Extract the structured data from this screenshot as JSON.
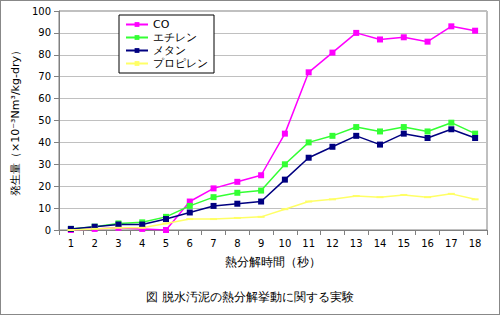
{
  "chart_data": {
    "type": "line",
    "title": "図 脱水汚泥の熱分解挙動に関する実験",
    "x_label": "熱分解時間（秒）",
    "y_label": "発生量（×10⁻³Nm³/kg-dry）",
    "categories": [
      "1",
      "2",
      "3",
      "4",
      "5",
      "6",
      "7",
      "8",
      "9",
      "10",
      "11",
      "12",
      "13",
      "14",
      "15",
      "16",
      "17",
      "18"
    ],
    "series": [
      {
        "name": "CO",
        "color": "#ff00ff",
        "marker": "square",
        "values": [
          0,
          0.5,
          1,
          0.5,
          0,
          13,
          19,
          22,
          25,
          44,
          72,
          81,
          90,
          87,
          88,
          86,
          93,
          91
        ]
      },
      {
        "name": "エチレン",
        "color": "#33ff33",
        "marker": "square",
        "values": [
          0.5,
          1.5,
          3,
          3.5,
          6,
          11,
          15,
          17,
          18,
          30,
          40,
          43,
          47,
          45,
          47,
          45,
          49,
          44
        ]
      },
      {
        "name": "メタン",
        "color": "#000080",
        "marker": "square",
        "values": [
          0.5,
          1.5,
          2.5,
          2.5,
          5,
          8,
          11,
          12,
          13,
          23,
          33,
          38,
          43,
          39,
          44,
          42,
          46,
          42
        ]
      },
      {
        "name": "プロピレン",
        "color": "#ffff66",
        "marker": "dash",
        "values": [
          0,
          0.5,
          1,
          1,
          3,
          5,
          5,
          5.5,
          6,
          9.5,
          13,
          14,
          15.5,
          15,
          16,
          15,
          16.5,
          14
        ]
      }
    ],
    "ylim": [
      0,
      100
    ],
    "yticks": [
      0,
      10,
      20,
      30,
      40,
      50,
      60,
      70,
      80,
      90,
      100
    ],
    "grid": true,
    "legend": "top-left"
  }
}
